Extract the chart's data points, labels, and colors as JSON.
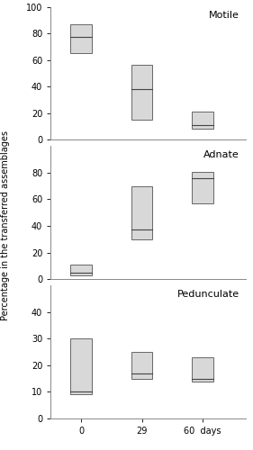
{
  "panels": [
    {
      "title": "Motile",
      "ylim": [
        0,
        100
      ],
      "yticks": [
        0,
        20,
        40,
        60,
        80,
        100
      ],
      "boxes": [
        {
          "x": 0,
          "q1": 65,
          "median": 77,
          "q3": 87
        },
        {
          "x": 1,
          "q1": 15,
          "median": 38,
          "q3": 56
        },
        {
          "x": 2,
          "q1": 8,
          "median": 11,
          "q3": 21
        }
      ]
    },
    {
      "title": "Adnate",
      "ylim": [
        0,
        100
      ],
      "yticks": [
        0,
        20,
        40,
        60,
        80
      ],
      "boxes": [
        {
          "x": 0,
          "q1": 3,
          "median": 5,
          "q3": 11
        },
        {
          "x": 1,
          "q1": 30,
          "median": 37,
          "q3": 70
        },
        {
          "x": 2,
          "q1": 57,
          "median": 76,
          "q3": 81
        }
      ]
    },
    {
      "title": "Pedunculate",
      "ylim": [
        0,
        50
      ],
      "yticks": [
        0,
        10,
        20,
        30,
        40
      ],
      "boxes": [
        {
          "x": 0,
          "q1": 9,
          "median": 10,
          "q3": 30
        },
        {
          "x": 1,
          "q1": 15,
          "median": 17,
          "q3": 25
        },
        {
          "x": 2,
          "q1": 14,
          "median": 15,
          "q3": 23
        }
      ]
    }
  ],
  "xtick_positions": [
    0,
    1,
    2
  ],
  "xtick_labels": [
    "0",
    "29",
    "60  days"
  ],
  "box_width": 0.35,
  "box_facecolor": "#d8d8d8",
  "box_edgecolor": "#666666",
  "median_color": "#444444",
  "ylabel": "Percentage in the transferred assemblages",
  "background_color": "#ffffff",
  "title_fontsize": 8,
  "label_fontsize": 7,
  "tick_fontsize": 7,
  "spine_color": "#888888",
  "xlim": [
    -0.5,
    2.7
  ]
}
